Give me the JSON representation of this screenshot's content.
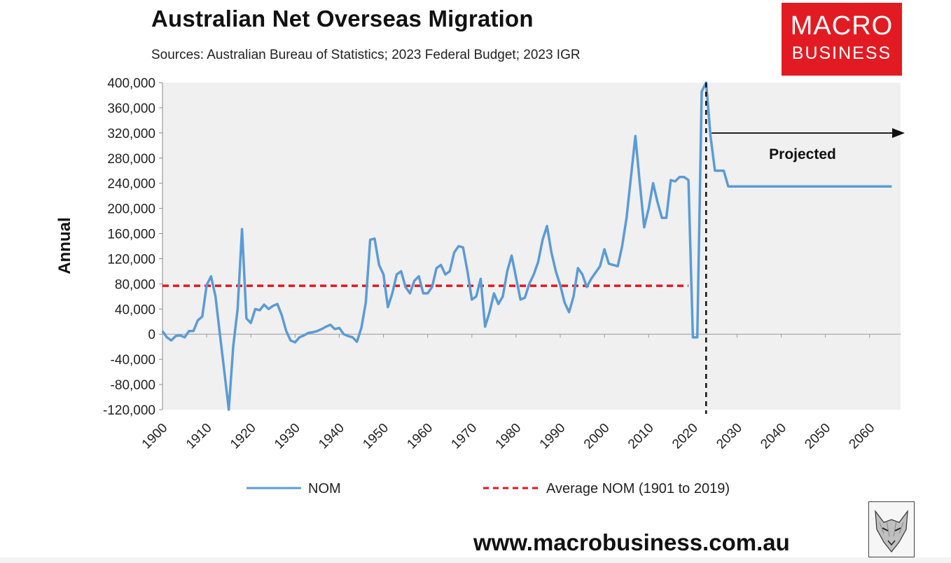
{
  "header": {
    "title": "Australian Net Overseas Migration",
    "subtitle": "Sources: Australian Bureau of Statistics; 2023 Federal Budget; 2023 IGR"
  },
  "brand": {
    "line1": "MACRO",
    "line2": "BUSINESS",
    "color": "#e21b23"
  },
  "footer": {
    "website": "www.macrobusiness.com.au"
  },
  "chart_data": {
    "type": "line",
    "title": "Australian Net Overseas Migration",
    "subtitle": "Sources: Australian Bureau of Statistics; 2023 Federal Budget; 2023 IGR",
    "xlabel": "",
    "ylabel": "Annual",
    "xlim": [
      1900,
      2067
    ],
    "ylim": [
      -120000,
      400000
    ],
    "y_ticks": [
      "400,000",
      "360,000",
      "320,000",
      "280,000",
      "240,000",
      "200,000",
      "160,000",
      "120,000",
      "80,000",
      "40,000",
      "0",
      "-40,000",
      "-80,000",
      "-120,000"
    ],
    "x_ticks": [
      "1900",
      "1910",
      "1920",
      "1930",
      "1940",
      "1950",
      "1960",
      "1970",
      "1980",
      "1990",
      "2000",
      "2010",
      "2020",
      "2030",
      "2040",
      "2050",
      "2060"
    ],
    "grid": false,
    "legend_position": "bottom",
    "projection_marker": {
      "x": 2023,
      "label": "Projected"
    },
    "colors": {
      "nom": "#5b9bd5",
      "average": "#e3171d",
      "plot_bg": "#f0f0f0"
    },
    "series": [
      {
        "name": "NOM",
        "x": [
          1900,
          1901,
          1902,
          1903,
          1904,
          1905,
          1906,
          1907,
          1908,
          1909,
          1910,
          1911,
          1912,
          1913,
          1914,
          1915,
          1916,
          1917,
          1918,
          1919,
          1920,
          1921,
          1922,
          1923,
          1924,
          1925,
          1926,
          1927,
          1928,
          1929,
          1930,
          1931,
          1932,
          1933,
          1934,
          1935,
          1936,
          1937,
          1938,
          1939,
          1940,
          1941,
          1942,
          1943,
          1944,
          1945,
          1946,
          1947,
          1948,
          1949,
          1950,
          1951,
          1952,
          1953,
          1954,
          1955,
          1956,
          1957,
          1958,
          1959,
          1960,
          1961,
          1962,
          1963,
          1964,
          1965,
          1966,
          1967,
          1968,
          1969,
          1970,
          1971,
          1972,
          1973,
          1974,
          1975,
          1976,
          1977,
          1978,
          1979,
          1980,
          1981,
          1982,
          1983,
          1984,
          1985,
          1986,
          1987,
          1988,
          1989,
          1990,
          1991,
          1992,
          1993,
          1994,
          1995,
          1996,
          1997,
          1998,
          1999,
          2000,
          2001,
          2002,
          2003,
          2004,
          2005,
          2006,
          2007,
          2008,
          2009,
          2010,
          2011,
          2012,
          2013,
          2014,
          2015,
          2016,
          2017,
          2018,
          2019,
          2020,
          2021,
          2022,
          2023,
          2024,
          2025,
          2026,
          2027,
          2028,
          2029,
          2030,
          2035,
          2040,
          2045,
          2050,
          2055,
          2060,
          2065
        ],
        "values": [
          5000,
          -5000,
          -10000,
          -3000,
          -2000,
          -5000,
          5000,
          5000,
          22000,
          28000,
          78000,
          92000,
          60000,
          0,
          -60000,
          -120000,
          -20000,
          40000,
          167000,
          25000,
          18000,
          40000,
          38000,
          47000,
          40000,
          45000,
          48000,
          30000,
          5000,
          -10000,
          -13000,
          -5000,
          -2000,
          2000,
          3000,
          5000,
          8000,
          12000,
          15000,
          8000,
          10000,
          0,
          -3000,
          -5000,
          -12000,
          10000,
          50000,
          150000,
          152000,
          110000,
          95000,
          43000,
          65000,
          95000,
          100000,
          75000,
          65000,
          85000,
          92000,
          65000,
          65000,
          75000,
          105000,
          110000,
          95000,
          100000,
          130000,
          140000,
          138000,
          100000,
          55000,
          60000,
          88000,
          12000,
          35000,
          65000,
          48000,
          60000,
          100000,
          125000,
          90000,
          55000,
          58000,
          80000,
          95000,
          115000,
          150000,
          172000,
          130000,
          100000,
          78000,
          50000,
          35000,
          60000,
          105000,
          95000,
          75000,
          88000,
          98000,
          108000,
          135000,
          112000,
          110000,
          108000,
          140000,
          185000,
          250000,
          315000,
          240000,
          170000,
          200000,
          240000,
          210000,
          185000,
          185000,
          245000,
          243000,
          250000,
          250000,
          245000,
          -5000,
          -5000,
          386000,
          400000,
          315000,
          260000,
          260000,
          260000,
          235000,
          235000,
          235000,
          235000,
          235000,
          235000,
          235000,
          235000,
          235000,
          235000
        ]
      },
      {
        "name": "Average NOM (1901 to 2019)",
        "x": [
          1900,
          2019
        ],
        "values": [
          77000,
          77000
        ]
      }
    ]
  }
}
